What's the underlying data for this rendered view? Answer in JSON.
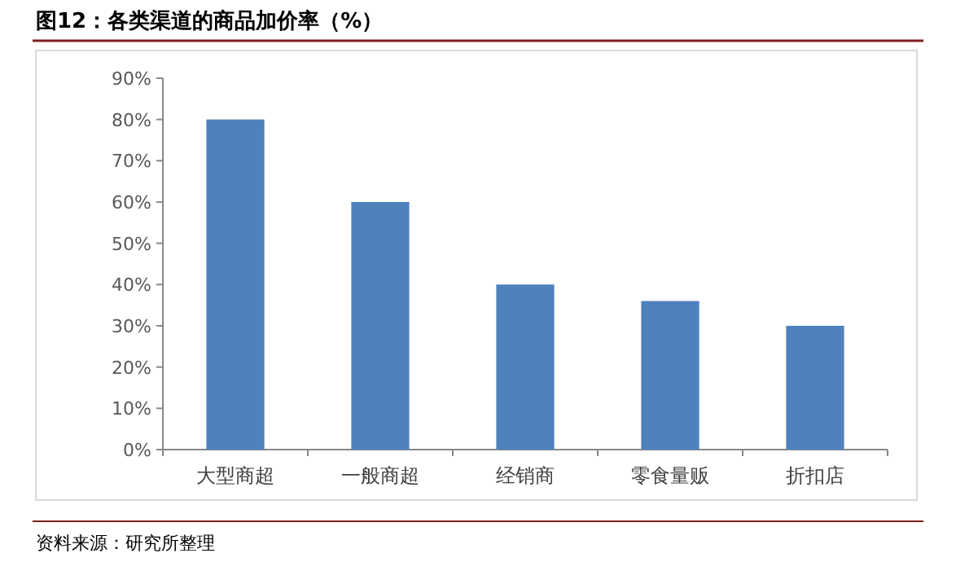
{
  "chart_data": {
    "type": "bar",
    "title": "图12：各类渠道的商品加价率（%）",
    "categories": [
      "大型商超",
      "一般商超",
      "经销商",
      "零食量贩",
      "折扣店"
    ],
    "values": [
      80,
      60,
      40,
      36,
      30
    ],
    "color": "#4f81bd",
    "ylim": [
      0,
      90
    ],
    "yticks": [
      {
        "value": 0,
        "label": "0%"
      },
      {
        "value": 10,
        "label": "10%"
      },
      {
        "value": 20,
        "label": "20%"
      },
      {
        "value": 30,
        "label": "30%"
      },
      {
        "value": 40,
        "label": "40%"
      },
      {
        "value": 50,
        "label": "50%"
      },
      {
        "value": 60,
        "label": "60%"
      },
      {
        "value": 70,
        "label": "70%"
      },
      {
        "value": 80,
        "label": "80%"
      },
      {
        "value": 90,
        "label": "90%"
      }
    ],
    "grid": false,
    "annotations": [
      "资料来源：研究所整理"
    ]
  }
}
